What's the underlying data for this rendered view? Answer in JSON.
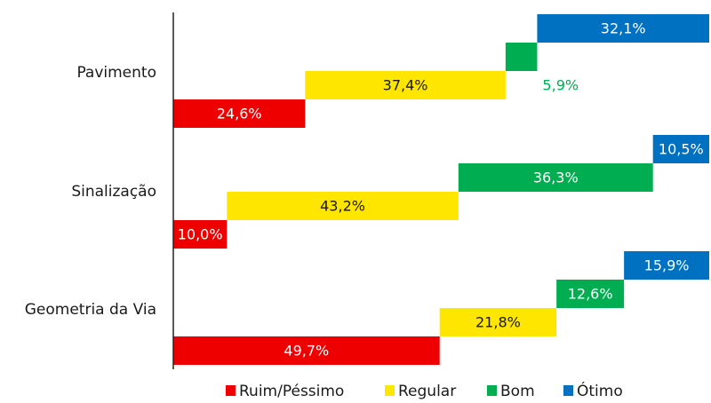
{
  "chart_data": {
    "type": "bar",
    "subtype": "stacked-horizontal-staggered",
    "categories": [
      "Pavimento",
      "Sinalização",
      "Geometria da Via"
    ],
    "series": [
      {
        "name": "Ruim/Péssimo",
        "color": "#ee0000",
        "label_color": "#ffffff",
        "values": [
          24.6,
          10.0,
          49.7
        ],
        "labels": [
          "24,6%",
          "10,0%",
          "49,7%"
        ],
        "label_position": [
          "inside",
          "inside",
          "inside"
        ]
      },
      {
        "name": "Regular",
        "color": "#ffe600",
        "label_color": "#1a1a1a",
        "values": [
          37.4,
          43.2,
          21.8
        ],
        "labels": [
          "37,4%",
          "43,2%",
          "21,8%"
        ],
        "label_position": [
          "inside",
          "inside",
          "inside"
        ]
      },
      {
        "name": "Bom",
        "color": "#00ad50",
        "label_color": "#ffffff",
        "values": [
          5.9,
          36.3,
          12.6
        ],
        "labels": [
          "5,9%",
          "36,3%",
          "12,6%"
        ],
        "label_position": [
          "below",
          "inside",
          "inside"
        ]
      },
      {
        "name": "Ótimo",
        "color": "#0070c0",
        "label_color": "#ffffff",
        "values": [
          32.1,
          10.5,
          15.9
        ],
        "labels": [
          "32,1%",
          "10,5%",
          "15,9%"
        ],
        "label_position": [
          "inside",
          "inside",
          "inside"
        ]
      }
    ],
    "xlim": [
      0,
      100
    ],
    "grid": false,
    "legend": {
      "placement": "bottom"
    }
  }
}
